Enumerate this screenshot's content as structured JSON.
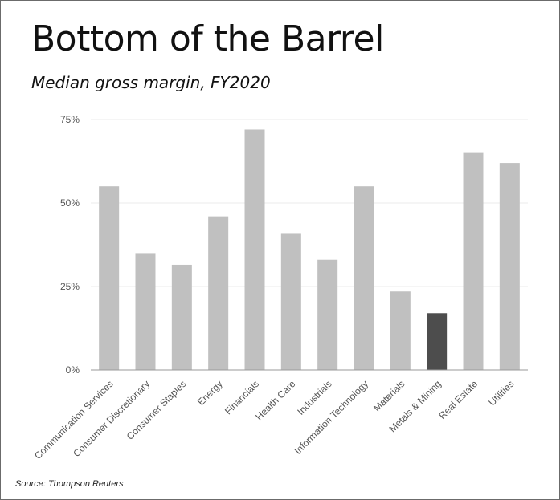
{
  "title": "Bottom of the Barrel",
  "subtitle": "Median gross margin, FY2020",
  "source": "Source: Thompson Reuters",
  "colors": {
    "bar": "#c0c0c0",
    "highlight": "#4d4d4d",
    "grid": "#ebebeb",
    "axis": "#9a9a9a"
  },
  "chart_data": {
    "type": "bar",
    "title": "Bottom of the Barrel",
    "subtitle": "Median gross margin, FY2020",
    "xlabel": "",
    "ylabel": "",
    "ylim": [
      0,
      75
    ],
    "yticks": [
      0,
      25,
      50,
      75
    ],
    "ytick_labels": [
      "0%",
      "25%",
      "50%",
      "75%"
    ],
    "grid": true,
    "legend": "none",
    "categories": [
      "Communication Services",
      "Consumer Discretionary",
      "Consumer Staples",
      "Energy",
      "Financials",
      "Health Care",
      "Industrials",
      "Information Technology",
      "Materials",
      "Metals & Mining",
      "Real Estate",
      "Utilities"
    ],
    "values": [
      55,
      35,
      31.5,
      46,
      72,
      41,
      33,
      55,
      23.5,
      17,
      65,
      62
    ],
    "highlight": "Metals & Mining"
  }
}
